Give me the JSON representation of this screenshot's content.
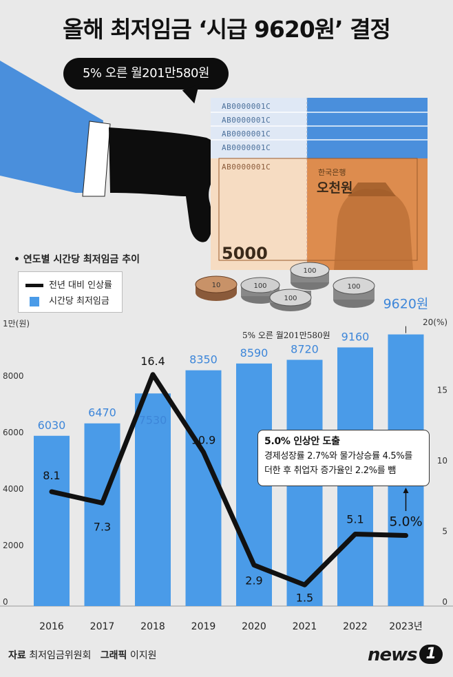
{
  "header": {
    "title": "올해 최저임금 ‘시급 9620원’ 결정",
    "bubble": "5% 오른 월201만580원"
  },
  "illustration": {
    "serials": [
      "AB0000001C",
      "AB0000001C",
      "AB0000001C",
      "AB0000001C",
      "AB0000001C"
    ],
    "bank_name": "한국은행",
    "won_name": "오천원",
    "denomination": "5000",
    "coins": [
      "10",
      "100",
      "100",
      "100",
      "100"
    ]
  },
  "chart_data": {
    "type": "bar",
    "subtitle": "• 연도별 시간당 최저임금 추이",
    "legend": [
      {
        "name": "전년 대비 인상률",
        "type": "line",
        "color": "#111111"
      },
      {
        "name": "시간당 최저임금",
        "type": "bar",
        "color": "#4a9be8"
      }
    ],
    "left_axis_title": "1만(원)",
    "right_axis_title": "20(%)",
    "left_ticks": [
      "8000",
      "6000",
      "4000",
      "2000",
      "0"
    ],
    "right_ticks": [
      "15",
      "10",
      "5",
      "0"
    ],
    "categories": [
      "2016",
      "2017",
      "2018",
      "2019",
      "2020",
      "2021",
      "2022",
      "2023년"
    ],
    "series": [
      {
        "name": "시간당 최저임금",
        "values": [
          6030,
          6470,
          7530,
          8350,
          8590,
          8720,
          9160,
          9620
        ],
        "labels": [
          "6030",
          "6470",
          "7530",
          "8350",
          "8590",
          "8720",
          "9160",
          "9620원"
        ],
        "axis": "left",
        "ylim": [
          0,
          10000
        ]
      },
      {
        "name": "전년 대비 인상률",
        "values": [
          8.1,
          7.3,
          16.4,
          10.9,
          2.9,
          1.5,
          5.1,
          5.0
        ],
        "labels": [
          "8.1",
          "7.3",
          "16.4",
          "10.9",
          "2.9",
          "1.5",
          "5.1",
          "5.0%"
        ],
        "axis": "right",
        "ylim": [
          0,
          20
        ]
      }
    ],
    "overlay_note": "5% 오른 월201만580원",
    "callout": {
      "head": "5.0% 인상안 도출",
      "line1": "경제성장률 2.7%와 물가상승률 4.5%를",
      "line2": "더한 후 취업자 증가율인 2.2%를 뺌"
    }
  },
  "footer": {
    "source_label": "자료",
    "source": "최저임금위원회",
    "graphic_label": "그래픽",
    "graphic": "이지원",
    "logo": "news",
    "logo_mark": "1"
  },
  "colors": {
    "bar": "#4a9be8",
    "line": "#111111",
    "label_blue": "#3d86d9",
    "background": "#e9e9e9"
  }
}
